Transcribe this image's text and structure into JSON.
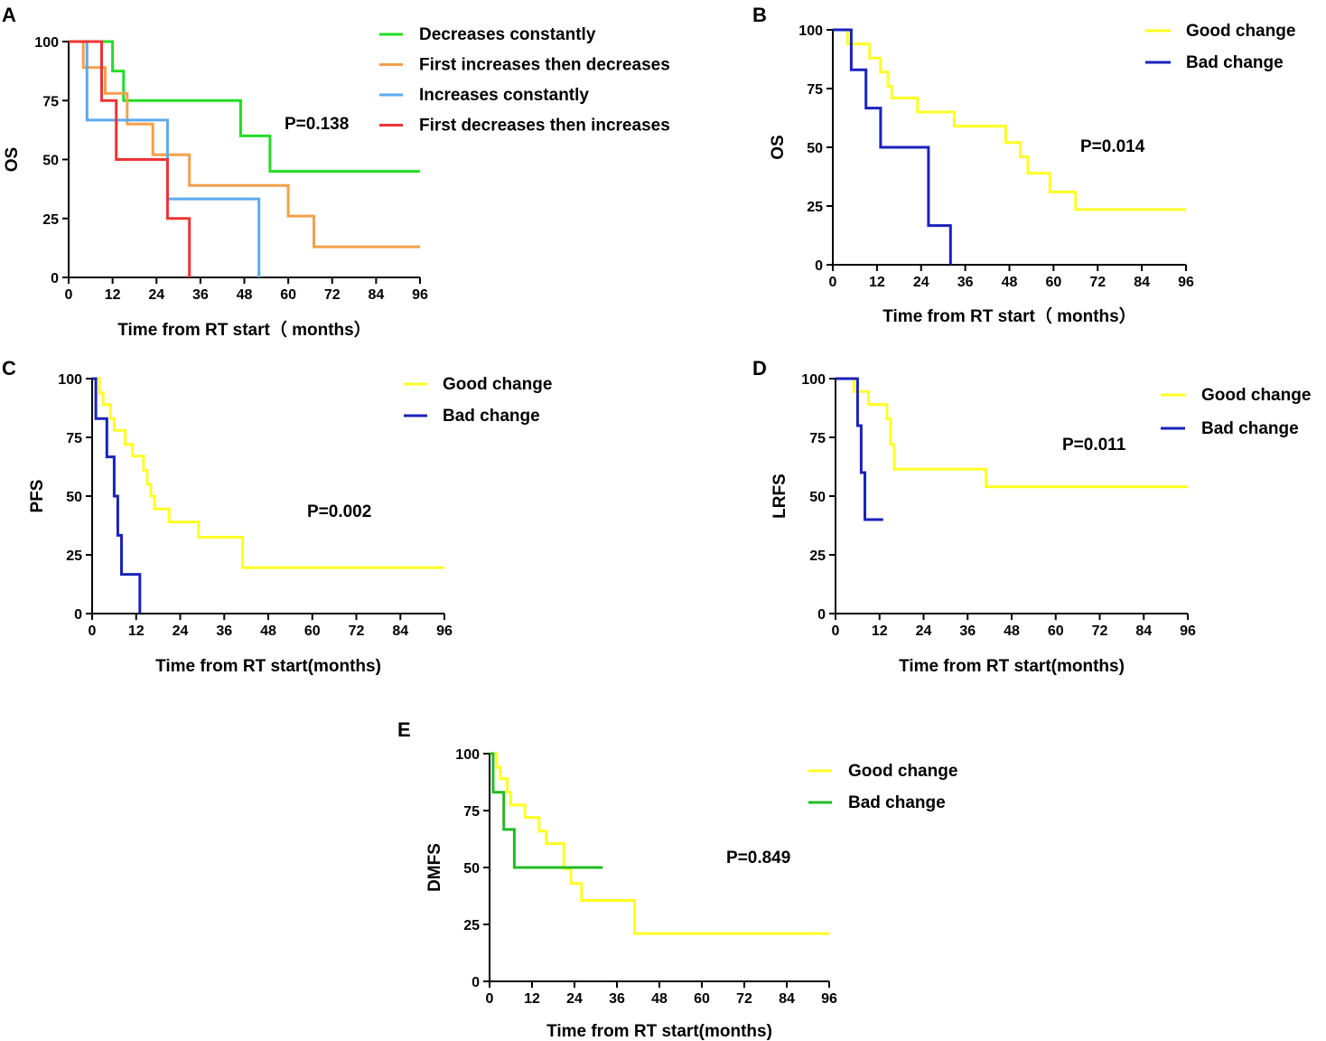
{
  "chart_data": [
    {
      "panel": "A",
      "type": "line",
      "subtype": "kaplan-meier",
      "xlabel": "Time from RT start（ months）",
      "ylabel": "OS",
      "xlim": [
        0,
        96
      ],
      "ylim": [
        0,
        100
      ],
      "xticks": [
        "0",
        "12",
        "24",
        "36",
        "48",
        "60",
        "72",
        "84",
        "96"
      ],
      "yticks": [
        "0",
        "25",
        "50",
        "75",
        "100"
      ],
      "pvalue": "P=0.138",
      "legend_position": "top-right",
      "series": [
        {
          "name": "Decreases constantly",
          "color": "#22dd22",
          "points": [
            [
              0,
              100
            ],
            [
              12,
              100
            ],
            [
              12,
              87.5
            ],
            [
              15,
              87.5
            ],
            [
              15,
              75
            ],
            [
              47,
              75
            ],
            [
              47,
              60
            ],
            [
              55,
              60
            ],
            [
              55,
              45
            ],
            [
              96,
              45
            ]
          ]
        },
        {
          "name": "First increases then decreases",
          "color": "#f5a04a",
          "points": [
            [
              0,
              100
            ],
            [
              4,
              100
            ],
            [
              4,
              89
            ],
            [
              10,
              89
            ],
            [
              10,
              78
            ],
            [
              16,
              78
            ],
            [
              16,
              65
            ],
            [
              23,
              65
            ],
            [
              23,
              52
            ],
            [
              33,
              52
            ],
            [
              33,
              39
            ],
            [
              60,
              39
            ],
            [
              60,
              26
            ],
            [
              67,
              26
            ],
            [
              67,
              13
            ],
            [
              96,
              13
            ]
          ]
        },
        {
          "name": "Increases constantly",
          "color": "#5aaaf0",
          "points": [
            [
              0,
              100
            ],
            [
              5,
              100
            ],
            [
              5,
              66.7
            ],
            [
              27,
              66.7
            ],
            [
              27,
              33.3
            ],
            [
              52,
              33.3
            ],
            [
              52,
              0
            ]
          ]
        },
        {
          "name": "First decreases then increases",
          "color": "#ee3333",
          "points": [
            [
              0,
              100
            ],
            [
              9,
              100
            ],
            [
              9,
              75
            ],
            [
              13,
              75
            ],
            [
              13,
              50
            ],
            [
              27,
              50
            ],
            [
              27,
              25
            ],
            [
              33,
              25
            ],
            [
              33,
              0
            ]
          ]
        }
      ]
    },
    {
      "panel": "B",
      "type": "line",
      "subtype": "kaplan-meier",
      "xlabel": "Time from RT start（ months）",
      "ylabel": "OS",
      "xlim": [
        0,
        96
      ],
      "ylim": [
        0,
        100
      ],
      "xticks": [
        "0",
        "12",
        "24",
        "36",
        "48",
        "60",
        "72",
        "84",
        "96"
      ],
      "yticks": [
        "0",
        "25",
        "50",
        "75",
        "100"
      ],
      "pvalue": "P=0.014",
      "legend_position": "top-right",
      "series": [
        {
          "name": "Good change",
          "color": "#ffff22",
          "points": [
            [
              0,
              100
            ],
            [
              4,
              100
            ],
            [
              4,
              94
            ],
            [
              10,
              94
            ],
            [
              10,
              88
            ],
            [
              13,
              88
            ],
            [
              13,
              82
            ],
            [
              15,
              82
            ],
            [
              15,
              76
            ],
            [
              16,
              76
            ],
            [
              16,
              71
            ],
            [
              23,
              71
            ],
            [
              23,
              65
            ],
            [
              33,
              65
            ],
            [
              33,
              59
            ],
            [
              47,
              59
            ],
            [
              47,
              52
            ],
            [
              51,
              52
            ],
            [
              51,
              46
            ],
            [
              53,
              46
            ],
            [
              53,
              39
            ],
            [
              59,
              39
            ],
            [
              59,
              31
            ],
            [
              66,
              31
            ],
            [
              66,
              23.5
            ],
            [
              96,
              23.5
            ]
          ]
        },
        {
          "name": "Bad change",
          "color": "#1a22bb",
          "points": [
            [
              0,
              100
            ],
            [
              5,
              100
            ],
            [
              5,
              83
            ],
            [
              9,
              83
            ],
            [
              9,
              66.7
            ],
            [
              13,
              66.7
            ],
            [
              13,
              50
            ],
            [
              26,
              50
            ],
            [
              26,
              16.7
            ],
            [
              32,
              16.7
            ],
            [
              32,
              0
            ]
          ]
        }
      ]
    },
    {
      "panel": "C",
      "type": "line",
      "subtype": "kaplan-meier",
      "xlabel": "Time from RT start(months)",
      "ylabel": "PFS",
      "xlim": [
        0,
        96
      ],
      "ylim": [
        0,
        100
      ],
      "xticks": [
        "0",
        "12",
        "24",
        "36",
        "48",
        "60",
        "72",
        "84",
        "96"
      ],
      "yticks": [
        "0",
        "25",
        "50",
        "75",
        "100"
      ],
      "pvalue": "P=0.002",
      "legend_position": "top-right",
      "series": [
        {
          "name": "Good change",
          "color": "#ffff22",
          "points": [
            [
              0,
              100
            ],
            [
              2,
              100
            ],
            [
              2,
              94
            ],
            [
              3,
              94
            ],
            [
              3,
              89
            ],
            [
              5,
              89
            ],
            [
              5,
              83
            ],
            [
              6,
              83
            ],
            [
              6,
              78
            ],
            [
              9,
              78
            ],
            [
              9,
              72
            ],
            [
              11,
              72
            ],
            [
              11,
              67
            ],
            [
              14,
              67
            ],
            [
              14,
              61
            ],
            [
              15,
              61
            ],
            [
              15,
              55
            ],
            [
              16,
              55
            ],
            [
              16,
              50
            ],
            [
              17,
              50
            ],
            [
              17,
              44.5
            ],
            [
              21,
              44.5
            ],
            [
              21,
              39
            ],
            [
              29,
              39
            ],
            [
              29,
              32.5
            ],
            [
              41,
              32.5
            ],
            [
              41,
              19.5
            ],
            [
              96,
              19.5
            ]
          ]
        },
        {
          "name": "Bad change",
          "color": "#1a22bb",
          "points": [
            [
              0,
              100
            ],
            [
              1,
              100
            ],
            [
              1,
              83
            ],
            [
              4,
              83
            ],
            [
              4,
              66.7
            ],
            [
              6,
              66.7
            ],
            [
              6,
              50
            ],
            [
              7,
              50
            ],
            [
              7,
              33.3
            ],
            [
              8,
              33.3
            ],
            [
              8,
              16.7
            ],
            [
              13,
              16.7
            ],
            [
              13,
              0
            ]
          ]
        }
      ]
    },
    {
      "panel": "D",
      "type": "line",
      "subtype": "kaplan-meier",
      "xlabel": "Time from RT start(months)",
      "ylabel": "LRFS",
      "xlim": [
        0,
        96
      ],
      "ylim": [
        0,
        100
      ],
      "xticks": [
        "0",
        "12",
        "24",
        "36",
        "48",
        "60",
        "72",
        "84",
        "96"
      ],
      "yticks": [
        "0",
        "25",
        "50",
        "75",
        "100"
      ],
      "pvalue": "P=0.011",
      "legend_position": "top-right",
      "series": [
        {
          "name": "Good change",
          "color": "#ffff22",
          "points": [
            [
              0,
              100
            ],
            [
              5,
              100
            ],
            [
              5,
              94.5
            ],
            [
              9,
              94.5
            ],
            [
              9,
              89
            ],
            [
              14,
              89
            ],
            [
              14,
              83
            ],
            [
              15,
              83
            ],
            [
              15,
              72
            ],
            [
              16,
              72
            ],
            [
              16,
              61.5
            ],
            [
              41,
              61.5
            ],
            [
              41,
              54
            ],
            [
              96,
              54
            ]
          ]
        },
        {
          "name": "Bad change",
          "color": "#1a22bb",
          "points": [
            [
              0,
              100
            ],
            [
              6,
              100
            ],
            [
              6,
              80
            ],
            [
              7,
              80
            ],
            [
              7,
              60
            ],
            [
              8,
              60
            ],
            [
              8,
              40
            ],
            [
              13,
              40
            ]
          ]
        }
      ]
    },
    {
      "panel": "E",
      "type": "line",
      "subtype": "kaplan-meier",
      "xlabel": "Time from RT start(months)",
      "ylabel": "DMFS",
      "xlim": [
        0,
        96
      ],
      "ylim": [
        0,
        100
      ],
      "xticks": [
        "0",
        "12",
        "24",
        "36",
        "48",
        "60",
        "72",
        "84",
        "96"
      ],
      "yticks": [
        "0",
        "25",
        "50",
        "75",
        "100"
      ],
      "pvalue": "P=0.849",
      "legend_position": "top-right",
      "series": [
        {
          "name": "Good change",
          "color": "#ffff22",
          "points": [
            [
              0,
              100
            ],
            [
              2,
              100
            ],
            [
              2,
              94
            ],
            [
              3,
              94
            ],
            [
              3,
              89
            ],
            [
              5,
              89
            ],
            [
              5,
              83
            ],
            [
              6,
              83
            ],
            [
              6,
              77.5
            ],
            [
              10,
              77.5
            ],
            [
              10,
              72
            ],
            [
              14,
              72
            ],
            [
              14,
              66
            ],
            [
              16,
              66
            ],
            [
              16,
              60.5
            ],
            [
              21,
              60.5
            ],
            [
              21,
              49.5
            ],
            [
              23,
              49.5
            ],
            [
              23,
              43
            ],
            [
              26,
              43
            ],
            [
              26,
              35.5
            ],
            [
              41,
              35.5
            ],
            [
              41,
              21
            ],
            [
              96,
              21
            ]
          ]
        },
        {
          "name": "Bad change",
          "color": "#22bb22",
          "points": [
            [
              0,
              100
            ],
            [
              1,
              100
            ],
            [
              1,
              83
            ],
            [
              4,
              83
            ],
            [
              4,
              66.7
            ],
            [
              7,
              66.7
            ],
            [
              7,
              50
            ],
            [
              32,
              50
            ]
          ]
        }
      ]
    }
  ]
}
